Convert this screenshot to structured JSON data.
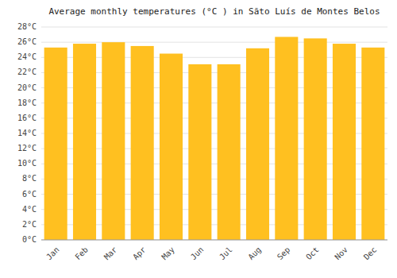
{
  "chart_data": {
    "type": "bar",
    "title": "Average monthly temperatures (°C ) in Sãto Luís de Montes Belos",
    "categories": [
      "Jan",
      "Feb",
      "Mar",
      "Apr",
      "May",
      "Jun",
      "Jul",
      "Aug",
      "Sep",
      "Oct",
      "Nov",
      "Dec"
    ],
    "values": [
      25.3,
      25.8,
      26.0,
      25.5,
      24.5,
      23.1,
      23.1,
      25.2,
      26.7,
      26.5,
      25.8,
      25.3
    ],
    "color": "#FFC020",
    "ylim": [
      0,
      28
    ],
    "yticks": [
      {
        "value": 0,
        "label": "0°C"
      },
      {
        "value": 2,
        "label": "2°C"
      },
      {
        "value": 4,
        "label": "4°C"
      },
      {
        "value": 6,
        "label": "6°C"
      },
      {
        "value": 8,
        "label": "8°C"
      },
      {
        "value": 10,
        "label": "10°C"
      },
      {
        "value": 12,
        "label": "12°C"
      },
      {
        "value": 14,
        "label": "14°C"
      },
      {
        "value": 16,
        "label": "16°C"
      },
      {
        "value": 18,
        "label": "18°C"
      },
      {
        "value": 20,
        "label": "20°C"
      },
      {
        "value": 22,
        "label": "22°C"
      },
      {
        "value": 24,
        "label": "24°C"
      },
      {
        "value": 26,
        "label": "26°C"
      },
      {
        "value": 28,
        "label": "28°C"
      }
    ],
    "grid": true
  }
}
